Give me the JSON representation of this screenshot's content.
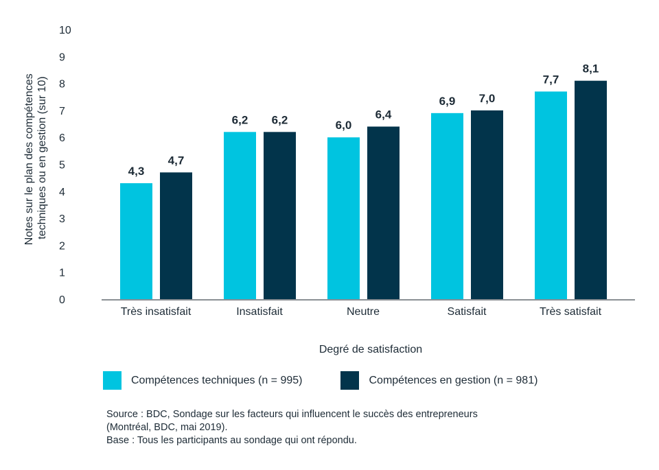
{
  "chart_data": {
    "type": "bar",
    "categories": [
      "Très insatisfait",
      "Insatisfait",
      "Neutre",
      "Satisfait",
      "Très satisfait"
    ],
    "series": [
      {
        "name": "Compétences techniques (n = 995)",
        "values": [
          4.3,
          6.2,
          6.0,
          6.9,
          7.7
        ],
        "labels": [
          "4,3",
          "6,2",
          "6,0",
          "6,9",
          "7,7"
        ],
        "color": "#00c4e0"
      },
      {
        "name": "Compétences en gestion (n = 981)",
        "values": [
          4.7,
          6.2,
          6.4,
          7.0,
          8.1
        ],
        "labels": [
          "4,7",
          "6,2",
          "6,4",
          "7,0",
          "8,1"
        ],
        "color": "#02344b"
      }
    ],
    "xlabel": "Degré de satisfaction",
    "ylabel_lines": [
      "Notes sur le plan des compétences",
      "techniques ou en gestion (sur 10)"
    ],
    "ylim": [
      0,
      10
    ],
    "yticks": [
      "0",
      "1",
      "2",
      "3",
      "4",
      "5",
      "6",
      "7",
      "8",
      "9",
      "10"
    ],
    "grid": false,
    "legend_position": "bottom"
  },
  "source_lines": [
    "Source : BDC, Sondage sur les facteurs qui influencent le succès des entrepreneurs",
    "(Montréal, BDC, mai 2019).",
    "Base : Tous les participants au sondage qui ont répondu."
  ]
}
